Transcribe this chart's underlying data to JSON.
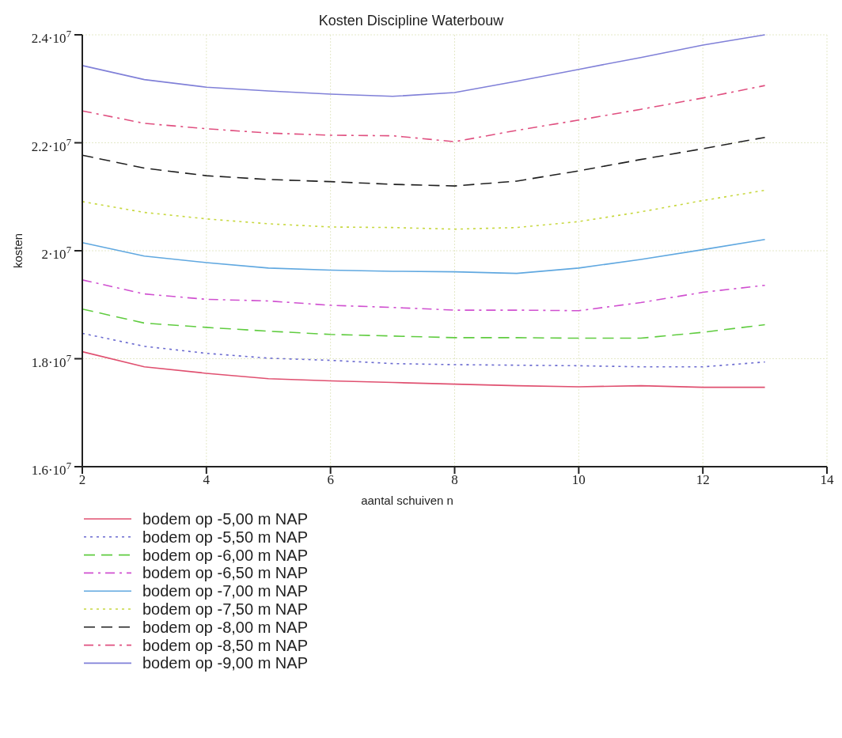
{
  "chart_data": {
    "type": "line",
    "title": "Kosten Discipline Waterbouw",
    "xlabel": "aantal schuiven n",
    "ylabel": "kosten",
    "x": [
      2,
      3,
      4,
      5,
      6,
      7,
      8,
      9,
      10,
      11,
      12,
      13
    ],
    "xlim": [
      2,
      14
    ],
    "xticks": [
      2,
      4,
      6,
      8,
      10,
      12,
      14
    ],
    "ylim": [
      16000000,
      24000000
    ],
    "yticks": [
      {
        "value": 16000000,
        "label": "1.6·10$^{7}$"
      },
      {
        "value": 18000000,
        "label": "1.8·10$^{7}$"
      },
      {
        "value": 20000000,
        "label": "2·10$^{7}$"
      },
      {
        "value": 22000000,
        "label": "2.2·10$^{7}$"
      },
      {
        "value": 24000000,
        "label": "2.4·10$^{7}$"
      }
    ],
    "grid": true,
    "legend": "bottom",
    "series": [
      {
        "name": "bodem op -5,00 m NAP",
        "color": "#e05070",
        "line_style": "solid",
        "values": [
          18130000,
          17850000,
          17730000,
          17630000,
          17590000,
          17560000,
          17530000,
          17500000,
          17480000,
          17500000,
          17470000,
          17470000
        ]
      },
      {
        "name": "bodem op -5,50 m NAP",
        "color": "#6a6ad0",
        "line_style": "dotted",
        "values": [
          18470000,
          18230000,
          18100000,
          18010000,
          17970000,
          17910000,
          17890000,
          17880000,
          17870000,
          17850000,
          17850000,
          17940000
        ]
      },
      {
        "name": "bodem op -6,00 m NAP",
        "color": "#60cc40",
        "line_style": "dashed",
        "values": [
          18920000,
          18660000,
          18580000,
          18510000,
          18450000,
          18420000,
          18390000,
          18390000,
          18380000,
          18380000,
          18490000,
          18630000
        ]
      },
      {
        "name": "bodem op -6,50 m NAP",
        "color": "#d050d0",
        "line_style": "dashdot",
        "values": [
          19460000,
          19200000,
          19100000,
          19070000,
          18990000,
          18950000,
          18900000,
          18900000,
          18890000,
          19040000,
          19230000,
          19360000
        ]
      },
      {
        "name": "bodem op -7,00 m NAP",
        "color": "#60a8e0",
        "line_style": "solid",
        "values": [
          20150000,
          19900000,
          19780000,
          19680000,
          19640000,
          19620000,
          19610000,
          19580000,
          19680000,
          19840000,
          20020000,
          20210000
        ]
      },
      {
        "name": "bodem op -7,50 m NAP",
        "color": "#c8d840",
        "line_style": "dotted",
        "values": [
          20910000,
          20710000,
          20590000,
          20500000,
          20440000,
          20430000,
          20400000,
          20430000,
          20540000,
          20720000,
          20930000,
          21120000
        ]
      },
      {
        "name": "bodem op -8,00 m NAP",
        "color": "#202020",
        "line_style": "dashed",
        "values": [
          21770000,
          21530000,
          21390000,
          21320000,
          21280000,
          21230000,
          21200000,
          21290000,
          21480000,
          21690000,
          21890000,
          22100000
        ]
      },
      {
        "name": "bodem op -8,50 m NAP",
        "color": "#e05080",
        "line_style": "dashdot",
        "values": [
          22590000,
          22360000,
          22260000,
          22180000,
          22140000,
          22130000,
          22020000,
          22230000,
          22420000,
          22620000,
          22830000,
          23060000
        ]
      },
      {
        "name": "bodem op -9,00 m NAP",
        "color": "#8080d8",
        "line_style": "solid",
        "values": [
          23430000,
          23170000,
          23030000,
          22960000,
          22900000,
          22860000,
          22930000,
          23140000,
          23360000,
          23580000,
          23810000,
          24000000
        ]
      }
    ]
  }
}
